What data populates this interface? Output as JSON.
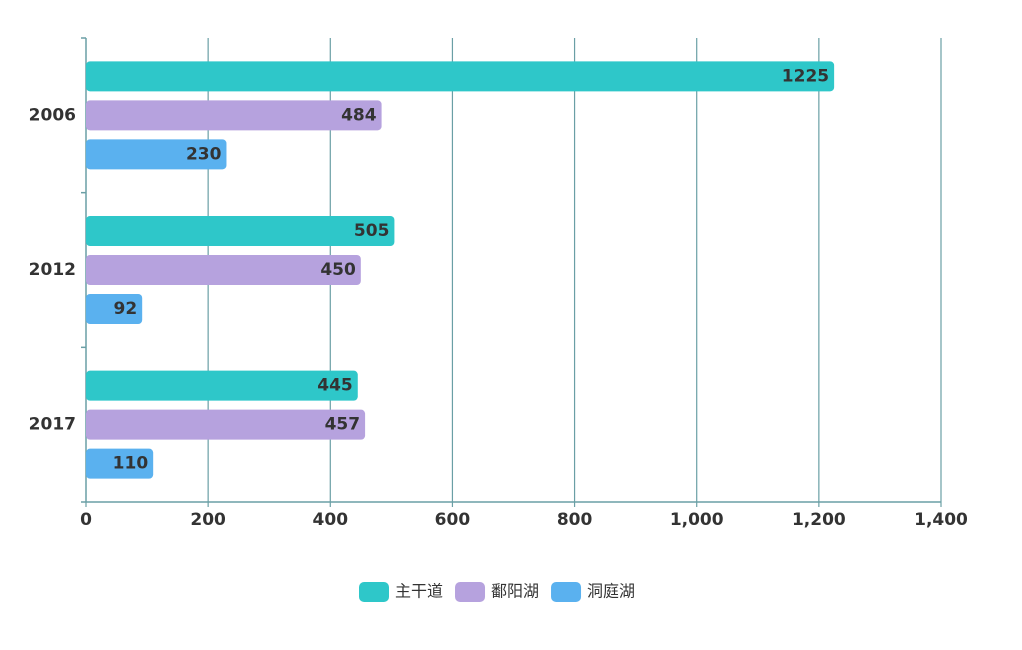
{
  "chart_data": {
    "type": "hbar",
    "categories": [
      "2006",
      "2012",
      "2017"
    ],
    "series": [
      {
        "name": "主干道",
        "color": "#2ec7c9",
        "values": [
          1225,
          505,
          445
        ]
      },
      {
        "name": "鄱阳湖",
        "color": "#b6a2de",
        "values": [
          484,
          450,
          457
        ]
      },
      {
        "name": "洞庭湖",
        "color": "#5ab1ef",
        "values": [
          230,
          92,
          110
        ]
      }
    ],
    "xlim": [
      0,
      1400
    ],
    "xticks": [
      0,
      200,
      400,
      600,
      800,
      {
        "value": 1000,
        "label": "1,000"
      },
      {
        "value": 1200,
        "label": "1,200"
      },
      {
        "value": 1400,
        "label": "1,400"
      }
    ],
    "grid": true,
    "legend": "bottom"
  }
}
